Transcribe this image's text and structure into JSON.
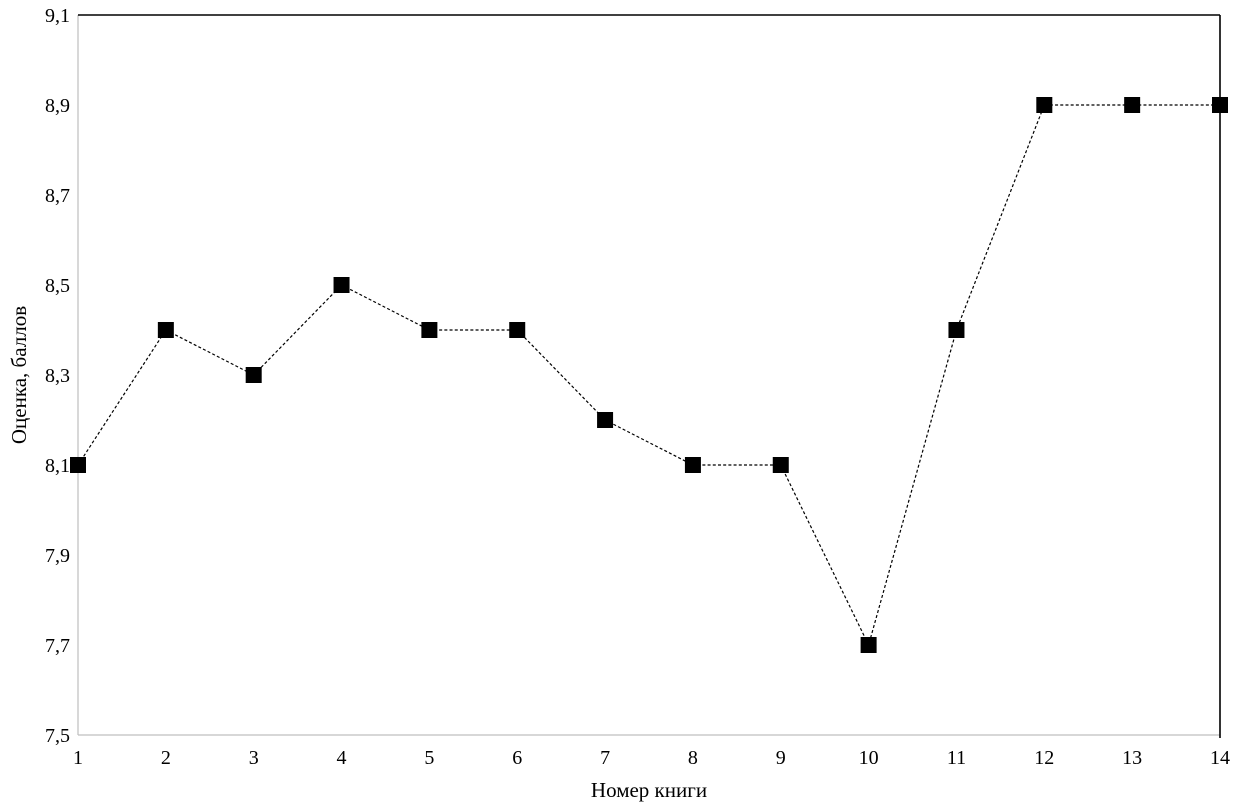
{
  "chart_data": {
    "type": "line",
    "title": "",
    "xlabel": "Номер книги",
    "ylabel": "Оценка, баллов",
    "categories": [
      "1",
      "2",
      "3",
      "4",
      "5",
      "6",
      "7",
      "8",
      "9",
      "10",
      "11",
      "12",
      "13",
      "14"
    ],
    "values": [
      8.1,
      8.4,
      8.3,
      8.5,
      8.4,
      8.4,
      8.2,
      8.1,
      8.1,
      7.7,
      8.4,
      8.9,
      8.9,
      8.9
    ],
    "ylim": [
      7.5,
      9.1
    ],
    "y_tick_step": 0.2,
    "y_tick_labels": [
      "7,5",
      "7,7",
      "7,9",
      "8,1",
      "8,3",
      "8,5",
      "8,7",
      "8,9",
      "9,1"
    ],
    "decimal_separator": ",",
    "line_style": "dashed",
    "marker_shape": "square",
    "marker_size_px": 16,
    "line_color": "#000000",
    "marker_color": "#000000",
    "axis_line_color": "#bfbfbf",
    "plot_border_color": "#000000",
    "text_color": "#000000",
    "background_color": "#ffffff",
    "grid": false,
    "legend": false
  }
}
